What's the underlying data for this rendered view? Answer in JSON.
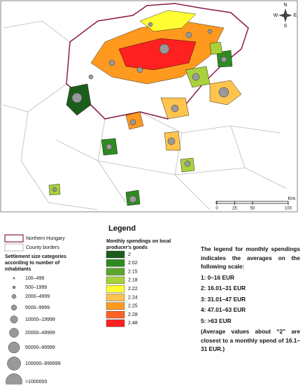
{
  "map": {
    "compass": {
      "n": "N",
      "s": "S",
      "e": "E",
      "w": "W"
    },
    "scale": {
      "ticks": [
        0,
        25,
        50,
        100
      ],
      "unit": "Km"
    }
  },
  "legend": {
    "title": "Legend",
    "borders": [
      "Northern Hungary",
      "County borders"
    ],
    "size_title": [
      "Settlement size categories",
      "according to number of",
      "inhabitants"
    ],
    "sizes": [
      "100–499",
      "500–1999",
      "2000–4999",
      "5000–9999",
      "10000–19999",
      "20000–49999",
      "50000–99999",
      "100000–999999",
      ">1000000"
    ],
    "spend_title": [
      "Monthly spendings on local",
      "producer's goods"
    ],
    "spend": {
      "values": [
        2,
        2.02,
        2.15,
        2.18,
        2.22,
        2.24,
        2.25,
        2.28,
        2.48
      ],
      "colors": [
        "#1b5e1b",
        "#2e8b22",
        "#5aa62c",
        "#a9d13c",
        "#ffff33",
        "#ffc44d",
        "#ff9a1f",
        "#ff6424",
        "#ff2020"
      ]
    }
  },
  "note": {
    "intro": "The legend for monthly spendings indicates the averages on the following scale:",
    "items": [
      "1: 0–16 EUR",
      "2: 16.01–31 EUR",
      "3: 31.01–47 EUR",
      "4: 47.01–63 EUR",
      "5: >63 EUR"
    ],
    "footer": "(Average values about “2” are closest to a monthly spend of 16.1–31 EUR.)"
  }
}
